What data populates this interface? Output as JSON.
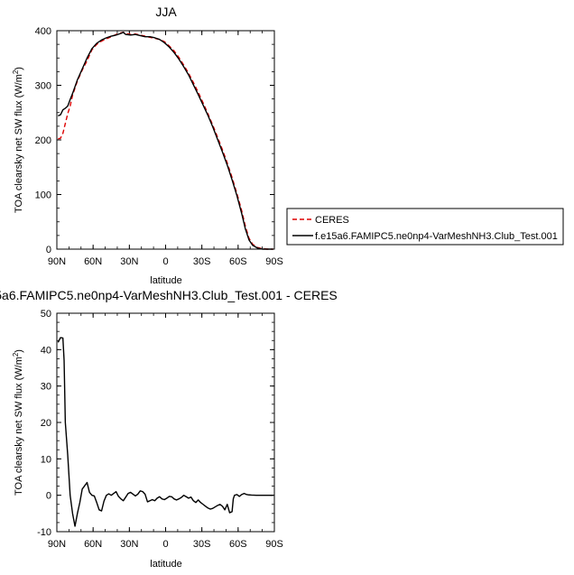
{
  "chart_data": [
    {
      "type": "line",
      "title": "JJA",
      "xlabel": "latitude",
      "ylabel": "TOA clearsky net SW flux (W/m",
      "ylabel_sup": "2",
      "ylabel_close": ")",
      "xlim": [
        90,
        -90
      ],
      "ylim": [
        0,
        400
      ],
      "xticks": [
        90,
        60,
        30,
        0,
        -30,
        -60,
        -90
      ],
      "xtick_labels": [
        "90N",
        "60N",
        "30N",
        "0",
        "30S",
        "60S",
        "90S"
      ],
      "yticks": [
        0,
        100,
        200,
        300,
        400
      ],
      "ytick_labels": [
        "0",
        "100",
        "200",
        "300",
        "400"
      ],
      "legend": "right",
      "series": [
        {
          "name": "CERES",
          "color": "#dd0000",
          "dash": "dashed",
          "points": [
            [
              89,
              202
            ],
            [
              87,
              203
            ],
            [
              85,
              212
            ],
            [
              83,
              230
            ],
            [
              81,
              248
            ],
            [
              79,
              262
            ],
            [
              77,
              282
            ],
            [
              73,
              308
            ],
            [
              69,
              328
            ],
            [
              65,
              345
            ],
            [
              61,
              365
            ],
            [
              57,
              375
            ],
            [
              53,
              381
            ],
            [
              49,
              385
            ],
            [
              45,
              389
            ],
            [
              41,
              393
            ],
            [
              37,
              396
            ],
            [
              35,
              397
            ],
            [
              33,
              395
            ],
            [
              29,
              393
            ],
            [
              25,
              394
            ],
            [
              21,
              392
            ],
            [
              17,
              390
            ],
            [
              13,
              388
            ],
            [
              9,
              386
            ],
            [
              5,
              384
            ],
            [
              1,
              380
            ],
            [
              -3,
              372
            ],
            [
              -7,
              363
            ],
            [
              -11,
              351
            ],
            [
              -15,
              337
            ],
            [
              -19,
              322
            ],
            [
              -23,
              305
            ],
            [
              -27,
              287
            ],
            [
              -31,
              268
            ],
            [
              -35,
              248
            ],
            [
              -39,
              227
            ],
            [
              -43,
              205
            ],
            [
              -47,
              182
            ],
            [
              -51,
              158
            ],
            [
              -55,
              131
            ],
            [
              -59,
              102
            ],
            [
              -63,
              70
            ],
            [
              -66,
              42
            ],
            [
              -69,
              20
            ],
            [
              -72,
              9
            ],
            [
              -76,
              3
            ],
            [
              -80,
              1
            ],
            [
              -84,
              0
            ],
            [
              -89,
              0
            ]
          ]
        },
        {
          "name": "f.e15a6.FAMIPC5.ne0np4-VarMeshNH3.Club_Test.001",
          "color": "#000000",
          "dash": "solid",
          "points": [
            [
              89,
              244
            ],
            [
              87,
              246
            ],
            [
              85,
              255
            ],
            [
              83,
              258
            ],
            [
              81,
              262
            ],
            [
              79,
              274
            ],
            [
              77,
              285
            ],
            [
              73,
              310
            ],
            [
              69,
              330
            ],
            [
              65,
              350
            ],
            [
              61,
              367
            ],
            [
              57,
              377
            ],
            [
              53,
              383
            ],
            [
              49,
              387
            ],
            [
              45,
              390
            ],
            [
              41,
              392
            ],
            [
              37,
              395
            ],
            [
              35,
              397
            ],
            [
              33,
              393
            ],
            [
              29,
              392
            ],
            [
              25,
              393
            ],
            [
              21,
              391
            ],
            [
              17,
              389
            ],
            [
              13,
              389
            ],
            [
              9,
              387
            ],
            [
              5,
              384
            ],
            [
              1,
              378
            ],
            [
              -3,
              370
            ],
            [
              -7,
              360
            ],
            [
              -11,
              348
            ],
            [
              -15,
              334
            ],
            [
              -19,
              319
            ],
            [
              -23,
              301
            ],
            [
              -27,
              283
            ],
            [
              -31,
              264
            ],
            [
              -35,
              245
            ],
            [
              -39,
              224
            ],
            [
              -43,
              201
            ],
            [
              -47,
              178
            ],
            [
              -51,
              154
            ],
            [
              -55,
              127
            ],
            [
              -59,
              98
            ],
            [
              -63,
              65
            ],
            [
              -66,
              37
            ],
            [
              -69,
              17
            ],
            [
              -72,
              7
            ],
            [
              -76,
              2
            ],
            [
              -80,
              0
            ],
            [
              -84,
              0
            ],
            [
              -89,
              0
            ]
          ]
        }
      ]
    },
    {
      "type": "line",
      "title": "5a6.FAMIPC5.ne0np4-VarMeshNH3.Club_Test.001 - CERES",
      "xlabel": "latitude",
      "ylabel": "TOA clearsky net SW flux (W/m",
      "ylabel_sup": "2",
      "ylabel_close": ")",
      "xlim": [
        90,
        -90
      ],
      "ylim": [
        -10,
        50
      ],
      "xticks": [
        90,
        60,
        30,
        0,
        -30,
        -60,
        -90
      ],
      "xtick_labels": [
        "90N",
        "60N",
        "30N",
        "0",
        "30S",
        "60S",
        "90S"
      ],
      "yticks": [
        -10,
        0,
        10,
        20,
        30,
        40,
        50
      ],
      "ytick_labels": [
        "-10",
        "0",
        "10",
        "20",
        "30",
        "40",
        "50"
      ],
      "series": [
        {
          "color": "#000000",
          "dash": "solid",
          "points": [
            [
              89,
              42
            ],
            [
              87,
              43.3
            ],
            [
              85,
              43.2
            ],
            [
              84,
              37
            ],
            [
              83,
              20
            ],
            [
              81,
              11
            ],
            [
              79,
              0
            ],
            [
              77,
              -5
            ],
            [
              75,
              -8.5
            ],
            [
              73,
              -5
            ],
            [
              71,
              -2
            ],
            [
              69,
              1.7
            ],
            [
              67,
              2.6
            ],
            [
              65,
              3.5
            ],
            [
              63,
              0.8
            ],
            [
              61,
              0
            ],
            [
              59,
              -0.2
            ],
            [
              57,
              -2
            ],
            [
              55,
              -4
            ],
            [
              53,
              -4.3
            ],
            [
              51,
              -1.6
            ],
            [
              49,
              0
            ],
            [
              47,
              0.4
            ],
            [
              45,
              0
            ],
            [
              43,
              0.5
            ],
            [
              41,
              1
            ],
            [
              39,
              -0.3
            ],
            [
              37,
              -1
            ],
            [
              35,
              -1.5
            ],
            [
              33,
              -0.5
            ],
            [
              31,
              0.5
            ],
            [
              29,
              0.8
            ],
            [
              27,
              0.3
            ],
            [
              25,
              -0.2
            ],
            [
              23,
              0.3
            ],
            [
              21,
              1.2
            ],
            [
              19,
              1
            ],
            [
              17,
              0.3
            ],
            [
              15,
              -1.8
            ],
            [
              13,
              -1.5
            ],
            [
              11,
              -1.2
            ],
            [
              9,
              -1.5
            ],
            [
              7,
              -0.8
            ],
            [
              5,
              -0.4
            ],
            [
              3,
              -1
            ],
            [
              1,
              -1.2
            ],
            [
              -1,
              -0.8
            ],
            [
              -3,
              -0.3
            ],
            [
              -5,
              -0.4
            ],
            [
              -7,
              -1
            ],
            [
              -9,
              -1.3
            ],
            [
              -11,
              -1
            ],
            [
              -13,
              -0.6
            ],
            [
              -15,
              0
            ],
            [
              -17,
              -0.4
            ],
            [
              -19,
              -0.8
            ],
            [
              -21,
              -0.5
            ],
            [
              -23,
              -1.5
            ],
            [
              -25,
              -2
            ],
            [
              -27,
              -1.3
            ],
            [
              -29,
              -2
            ],
            [
              -31,
              -2.5
            ],
            [
              -33,
              -3
            ],
            [
              -35,
              -3.5
            ],
            [
              -37,
              -3.8
            ],
            [
              -39,
              -3.6
            ],
            [
              -41,
              -3.2
            ],
            [
              -43,
              -2.8
            ],
            [
              -45,
              -2.5
            ],
            [
              -47,
              -3
            ],
            [
              -49,
              -4
            ],
            [
              -51,
              -2.5
            ],
            [
              -53,
              -4.8
            ],
            [
              -55,
              -4.5
            ],
            [
              -56,
              -1
            ],
            [
              -57,
              0
            ],
            [
              -59,
              0.2
            ],
            [
              -61,
              -0.3
            ],
            [
              -63,
              0.2
            ],
            [
              -65,
              0.5
            ],
            [
              -67,
              0.2
            ],
            [
              -69,
              0.1
            ],
            [
              -71,
              0.05
            ],
            [
              -75,
              0
            ],
            [
              -80,
              0
            ],
            [
              -84,
              0
            ],
            [
              -89,
              0
            ]
          ]
        }
      ]
    }
  ]
}
